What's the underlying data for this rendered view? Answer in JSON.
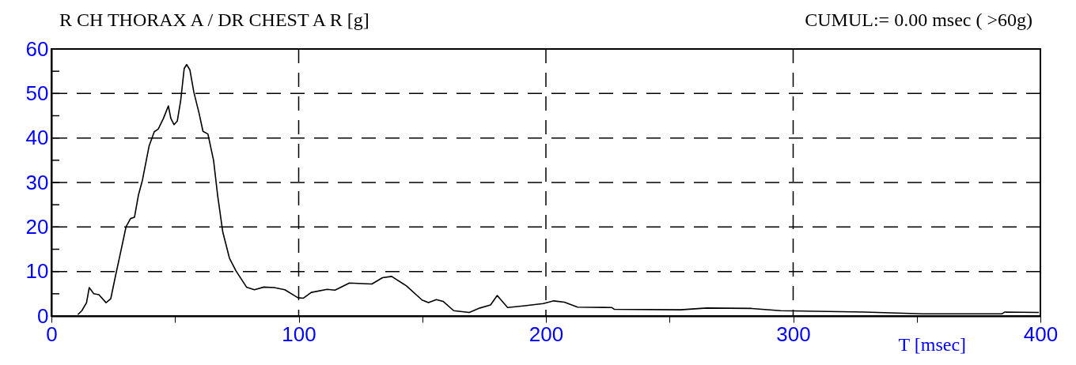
{
  "chart_data": {
    "type": "line",
    "title": "R CH THORAX A / DR CHEST A R [g]",
    "xlabel": "T [msec]",
    "annotations": [
      "CUMUL:= 0.00 msec ( >60g)"
    ],
    "x": [
      10.7,
      12.3,
      14.2,
      15.3,
      17.1,
      19.2,
      22.1,
      24,
      26.1,
      27.7,
      30.2,
      32,
      33.6,
      35.2,
      36.8,
      39.5,
      41.6,
      43.2,
      45.3,
      47.3,
      48.3,
      49.6,
      50.9,
      52.3,
      53.7,
      54.7,
      56,
      57.6,
      59.7,
      61.3,
      63.3,
      65.6,
      67.2,
      69.3,
      72,
      74.7,
      78.9,
      82.1,
      85.9,
      90.1,
      94.4,
      99.7,
      101.9,
      105.1,
      111.5,
      114.7,
      120.5,
      129.6,
      133.9,
      137.6,
      143.5,
      149.9,
      152.5,
      155.7,
      158.4,
      162.7,
      169,
      173.3,
      177.6,
      180.3,
      184.5,
      191.5,
      198.9,
      203.2,
      207.5,
      212.8,
      226.7,
      227.7,
      254.4,
      265,
      283.2,
      294.9,
      329,
      352.5,
      384.5,
      385.6,
      399.4
    ],
    "series": [
      {
        "color": "#000000",
        "values": [
          0.3,
          1.2,
          3.0,
          6.4,
          5.0,
          4.8,
          3.0,
          3.9,
          9.5,
          13.6,
          20.1,
          21.9,
          22.2,
          27.2,
          30.5,
          38.2,
          41.4,
          42.0,
          44.4,
          47.2,
          44.4,
          43.0,
          43.8,
          48.5,
          55.6,
          56.5,
          55.3,
          50.3,
          45.6,
          41.5,
          40.9,
          34.9,
          27.2,
          18.9,
          13.0,
          10.1,
          6.5,
          5.9,
          6.5,
          6.4,
          5.9,
          4.1,
          4.0,
          5.3,
          6.0,
          5.8,
          7.4,
          7.2,
          8.6,
          8.9,
          6.8,
          3.6,
          3.0,
          3.7,
          3.3,
          1.2,
          0.8,
          1.8,
          2.5,
          4.6,
          1.9,
          2.3,
          2.8,
          3.4,
          3.1,
          2.0,
          1.9,
          1.5,
          1.4,
          1.8,
          1.7,
          1.2,
          0.9,
          0.5,
          0.5,
          0.9,
          0.8
        ]
      }
    ],
    "xlim": [
      0,
      400
    ],
    "ylim": [
      0,
      60
    ],
    "xticks": [
      0,
      {
        "value": 50,
        "label": null
      },
      100,
      {
        "value": 150,
        "label": null
      },
      200,
      {
        "value": 250,
        "label": null
      },
      300,
      {
        "value": 350,
        "label": null
      },
      400
    ],
    "yticks": [
      0,
      {
        "value": 5,
        "label": null
      },
      10,
      {
        "value": 15,
        "label": null
      },
      20,
      {
        "value": 25,
        "label": null
      },
      30,
      {
        "value": 35,
        "label": null
      },
      40,
      {
        "value": 45,
        "label": null
      },
      50,
      {
        "value": 55,
        "label": null
      },
      60
    ],
    "grid": true,
    "line_style": "solid",
    "marker": "none"
  }
}
